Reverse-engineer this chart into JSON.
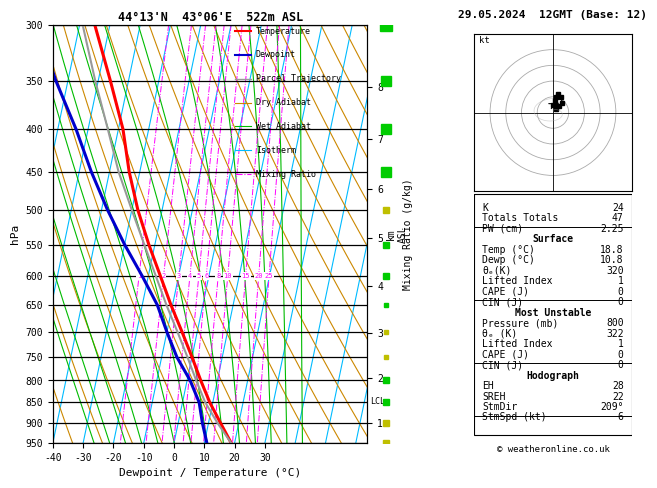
{
  "title_left": "44°13'N  43°06'E  522m ASL",
  "title_right": "29.05.2024  12GMT (Base: 12)",
  "hpa_label": "hPa",
  "xlabel": "Dewpoint / Temperature (°C)",
  "ylabel_right": "Mixing Ratio (g/kg)",
  "pressure_levels": [
    300,
    350,
    400,
    450,
    500,
    550,
    600,
    650,
    700,
    750,
    800,
    850,
    900,
    950
  ],
  "pressure_min": 300,
  "pressure_max": 950,
  "temp_min": -40,
  "temp_max": 35,
  "temp_ticks": [
    -40,
    -30,
    -20,
    -10,
    0,
    10,
    20,
    30
  ],
  "km_ticks": [
    1,
    2,
    3,
    4,
    5,
    6,
    7,
    8
  ],
  "lcl_pressure": 854,
  "bg_color": "#ffffff",
  "temp_color": "#ff0000",
  "dewp_color": "#0000cc",
  "parcel_color": "#999999",
  "dry_adiabat_color": "#cc8800",
  "wet_adiabat_color": "#00bb00",
  "isotherm_color": "#00bbff",
  "mixing_ratio_color": "#ff00ff",
  "grid_color": "#000000",
  "temp_profile_pressure": [
    950,
    900,
    850,
    800,
    750,
    700,
    650,
    600,
    550,
    500,
    450,
    400,
    350,
    300
  ],
  "temp_profile_temp": [
    18.8,
    14.0,
    9.0,
    4.5,
    0.0,
    -5.0,
    -10.5,
    -16.0,
    -22.0,
    -28.0,
    -33.5,
    -38.5,
    -46.0,
    -55.0
  ],
  "dewp_profile_pressure": [
    950,
    900,
    850,
    800,
    750,
    700,
    650,
    600,
    550,
    500,
    450,
    400,
    350,
    300
  ],
  "dewp_profile_temp": [
    10.8,
    8.0,
    5.5,
    1.0,
    -5.0,
    -10.0,
    -15.0,
    -22.0,
    -30.0,
    -38.0,
    -46.0,
    -54.0,
    -64.0,
    -74.0
  ],
  "parcel_profile_pressure": [
    950,
    900,
    850,
    800,
    750,
    700,
    650,
    600,
    550,
    500,
    450,
    400,
    350,
    300
  ],
  "parcel_profile_temp": [
    18.8,
    13.0,
    7.5,
    3.0,
    -1.5,
    -6.5,
    -12.0,
    -17.5,
    -23.5,
    -30.0,
    -37.0,
    -43.5,
    -51.0,
    -59.0
  ],
  "skew_factor": 25,
  "mixing_ratio_values": [
    1,
    2,
    3,
    4,
    5,
    6,
    8,
    10,
    15,
    20,
    25
  ],
  "copyright": "© weatheronline.co.uk",
  "K": "24",
  "TT": "47",
  "PW": "2.25",
  "sfc_temp": "18.8",
  "sfc_dewp": "10.8",
  "sfc_thetae": "320",
  "sfc_li": "1",
  "sfc_cape": "0",
  "sfc_cin": "0",
  "mu_pres": "800",
  "mu_thetae": "322",
  "mu_li": "1",
  "mu_cape": "0",
  "mu_cin": "0",
  "hodo_eh": "28",
  "hodo_sreh": "22",
  "hodo_stmdir": "209°",
  "hodo_stmspd": "6"
}
